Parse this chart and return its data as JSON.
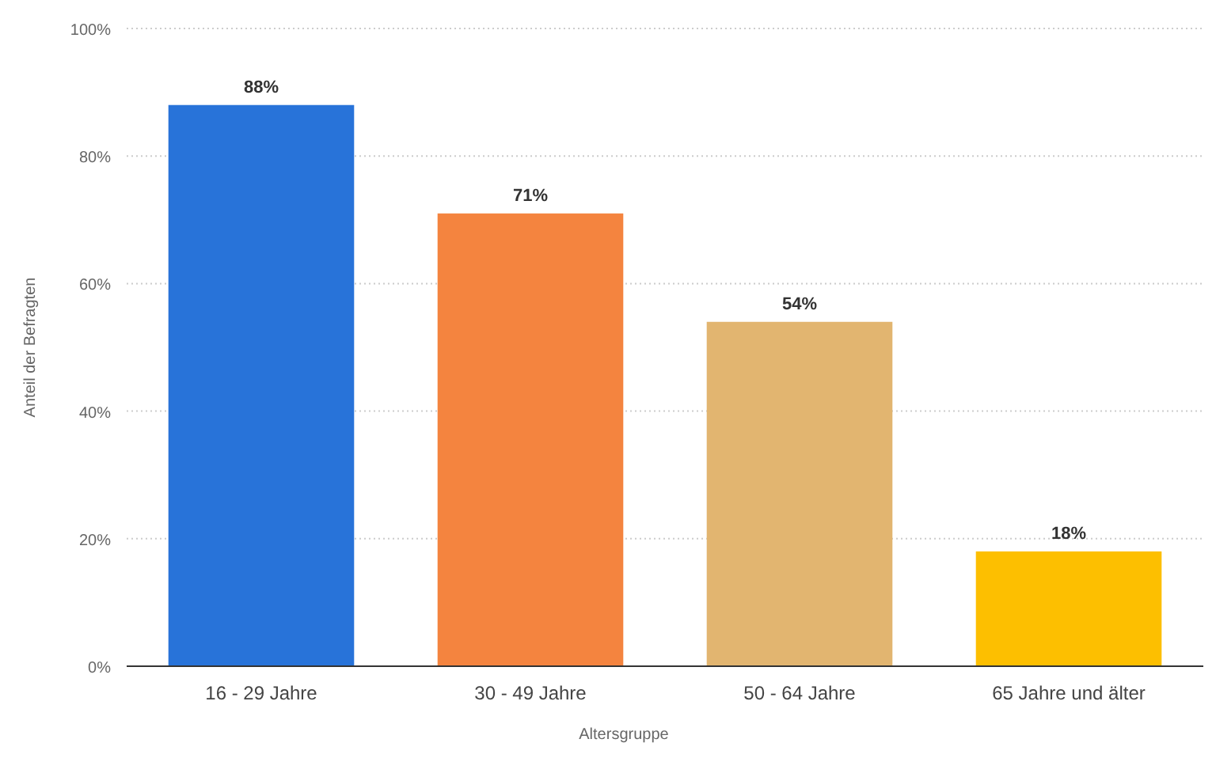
{
  "chart_data": {
    "type": "bar",
    "xlabel": "Altersgruppe",
    "ylabel": "Anteil der Befragten",
    "categories": [
      "16 - 29 Jahre",
      "30 - 49 Jahre",
      "50 - 64 Jahre",
      "65 Jahre und älter"
    ],
    "values": [
      88,
      71,
      54,
      18
    ],
    "colors": [
      "#2873d9",
      "#f4843f",
      "#e2b570",
      "#fdbf00"
    ],
    "value_labels": [
      "88%",
      "71%",
      "54%",
      "18%"
    ],
    "ylim": [
      0,
      100
    ],
    "yticks": [
      {
        "value": 0,
        "label": "0%"
      },
      {
        "value": 20,
        "label": "20%"
      },
      {
        "value": 40,
        "label": "40%"
      },
      {
        "value": 60,
        "label": "60%"
      },
      {
        "value": 80,
        "label": "80%"
      },
      {
        "value": 100,
        "label": "100%"
      }
    ],
    "grid": "y"
  }
}
